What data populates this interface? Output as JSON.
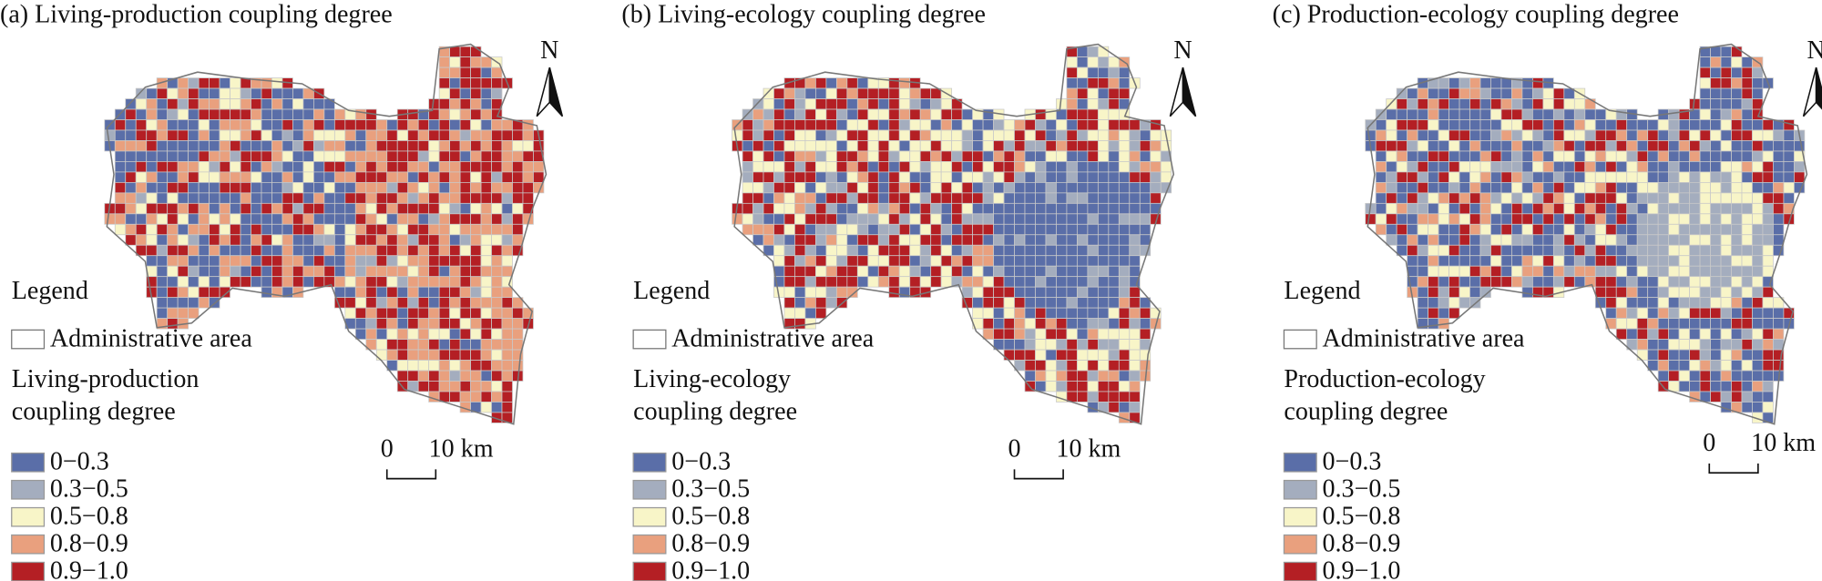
{
  "class_colors": [
    "#5a6ea8",
    "#a4adbe",
    "#f8f5c8",
    "#e9a07e",
    "#b41f24"
  ],
  "panels": [
    {
      "title": "(a) Living-production coupling degree",
      "legend_title": "Legend",
      "admin_label": "Administrative area",
      "layer_title": [
        "Living-production",
        "coupling degree"
      ],
      "classes": [
        "0−0.3",
        "0.3−0.5",
        "0.5−0.8",
        "0.8−0.9",
        "0.9−1.0"
      ],
      "scale": [
        "0",
        "10 km"
      ],
      "north": "N"
    },
    {
      "title": "(b) Living-ecology coupling degree",
      "legend_title": "Legend",
      "admin_label": "Administrative area",
      "layer_title": [
        "Living-ecology",
        "coupling degree"
      ],
      "classes": [
        "0−0.3",
        "0.3−0.5",
        "0.5−0.8",
        "0.8−0.9",
        "0.9−1.0"
      ],
      "scale": [
        "0",
        "10 km"
      ],
      "north": "N"
    },
    {
      "title": "(c) Production-ecology coupling degree",
      "legend_title": "Legend",
      "admin_label": "Administrative area",
      "layer_title": [
        "Production-ecology",
        "coupling degree"
      ],
      "classes": [
        "0−0.3",
        "0.3−0.5",
        "0.5−0.8",
        "0.8−0.9",
        "0.9−1.0"
      ],
      "scale": [
        "0",
        "10 km"
      ],
      "north": "N"
    }
  ]
}
